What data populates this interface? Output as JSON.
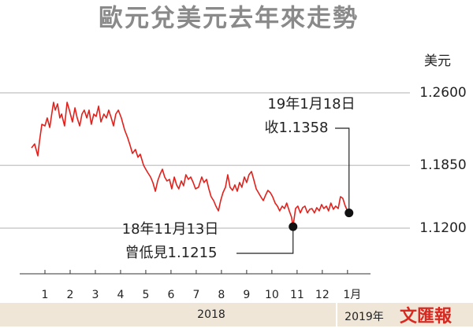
{
  "chart_data": {
    "type": "line",
    "title": "歐元兌美元去年來走勢",
    "ylabel": "美元",
    "source": "文匯報",
    "color": "#e3211c",
    "grid": true,
    "x": [
      0.47,
      0.59,
      0.72,
      0.78,
      0.88,
      1.0,
      1.09,
      1.19,
      1.28,
      1.34,
      1.41,
      1.5,
      1.59,
      1.66,
      1.78,
      1.88,
      1.97,
      2.09,
      2.19,
      2.28,
      2.38,
      2.47,
      2.56,
      2.66,
      2.75,
      2.84,
      2.94,
      3.03,
      3.13,
      3.22,
      3.34,
      3.44,
      3.53,
      3.63,
      3.72,
      3.81,
      3.91,
      4.03,
      4.16,
      4.28,
      4.38,
      4.47,
      4.59,
      4.69,
      4.78,
      4.91,
      5.0,
      5.09,
      5.19,
      5.28,
      5.38,
      5.47,
      5.56,
      5.66,
      5.75,
      5.84,
      5.94,
      6.03,
      6.13,
      6.22,
      6.31,
      6.41,
      6.5,
      6.59,
      6.69,
      6.78,
      6.88,
      6.97,
      7.09,
      7.22,
      7.31,
      7.41,
      7.5,
      7.59,
      7.69,
      7.78,
      7.88,
      7.97,
      8.06,
      8.16,
      8.25,
      8.34,
      8.44,
      8.53,
      8.63,
      8.72,
      8.81,
      8.91,
      9.0,
      9.09,
      9.19,
      9.28,
      9.38,
      9.47,
      9.56,
      9.66,
      9.75,
      9.84,
      9.94,
      10.03,
      10.13,
      10.22,
      10.31,
      10.41,
      10.5,
      10.59,
      10.69,
      10.78,
      10.84,
      10.94,
      11.03,
      11.13,
      11.22,
      11.31,
      11.41,
      11.5,
      11.59,
      11.69,
      11.78,
      11.88,
      11.97,
      12.06,
      12.16,
      12.25,
      12.34,
      12.44,
      12.53,
      12.63,
      12.72,
      12.81,
      12.91,
      13.0,
      13.06
    ],
    "values": [
      1.203,
      1.2071,
      1.1949,
      1.2095,
      1.2274,
      1.2258,
      1.234,
      1.2242,
      1.2396,
      1.2502,
      1.2421,
      1.2486,
      1.234,
      1.238,
      1.2258,
      1.2502,
      1.2421,
      1.2299,
      1.2445,
      1.234,
      1.2258,
      1.238,
      1.2421,
      1.234,
      1.2421,
      1.2274,
      1.238,
      1.2356,
      1.2462,
      1.2299,
      1.238,
      1.234,
      1.2421,
      1.234,
      1.2258,
      1.238,
      1.2421,
      1.234,
      1.2217,
      1.2136,
      1.2055,
      1.1973,
      1.2014,
      1.1933,
      1.1965,
      1.1851,
      1.181,
      1.177,
      1.1729,
      1.1672,
      1.1582,
      1.1688,
      1.1753,
      1.181,
      1.1729,
      1.1688,
      1.1705,
      1.1607,
      1.1729,
      1.1648,
      1.1607,
      1.1688,
      1.1639,
      1.1753,
      1.1705,
      1.1729,
      1.1672,
      1.1607,
      1.1623,
      1.1729,
      1.1672,
      1.1705,
      1.1607,
      1.1526,
      1.1485,
      1.1428,
      1.1379,
      1.1485,
      1.1566,
      1.1623,
      1.1753,
      1.1623,
      1.1591,
      1.1648,
      1.1582,
      1.1672,
      1.1623,
      1.1729,
      1.1672,
      1.1753,
      1.1786,
      1.1705,
      1.1607,
      1.1566,
      1.1526,
      1.1485,
      1.1542,
      1.1591,
      1.1566,
      1.1526,
      1.146,
      1.1428,
      1.1379,
      1.1428,
      1.1403,
      1.146,
      1.1379,
      1.1314,
      1.1215,
      1.1403,
      1.1428,
      1.1358,
      1.1412,
      1.1428,
      1.1358,
      1.1395,
      1.1403,
      1.1358,
      1.1412,
      1.1379,
      1.1444,
      1.1403,
      1.1428,
      1.1379,
      1.146,
      1.1395,
      1.1428,
      1.1403,
      1.1526,
      1.1509,
      1.1428,
      1.1379,
      1.1358
    ],
    "xlim": [
      0,
      15.6
    ],
    "ylim": [
      1.0728,
      1.3072
    ],
    "xticks": [
      1,
      2,
      3,
      4,
      5,
      6,
      7,
      8,
      9,
      10,
      11,
      12,
      {
        "value": 13,
        "label": "1月"
      }
    ],
    "yticks": [
      {
        "value": 1.26,
        "label": "1.2600"
      },
      {
        "value": 1.185,
        "label": "1.1850"
      },
      {
        "value": 1.12,
        "label": "1.1200"
      }
    ],
    "x_groups": [
      "2018",
      "2019年"
    ],
    "annotations": [
      {
        "lines": [
          "19年1月18日",
          "收1.1358"
        ],
        "x": 13.06,
        "y": 1.1358
      },
      {
        "lines": [
          "18年11月13日",
          "曾低見1.1215"
        ],
        "x": 10.84,
        "y": 1.1215
      }
    ]
  }
}
